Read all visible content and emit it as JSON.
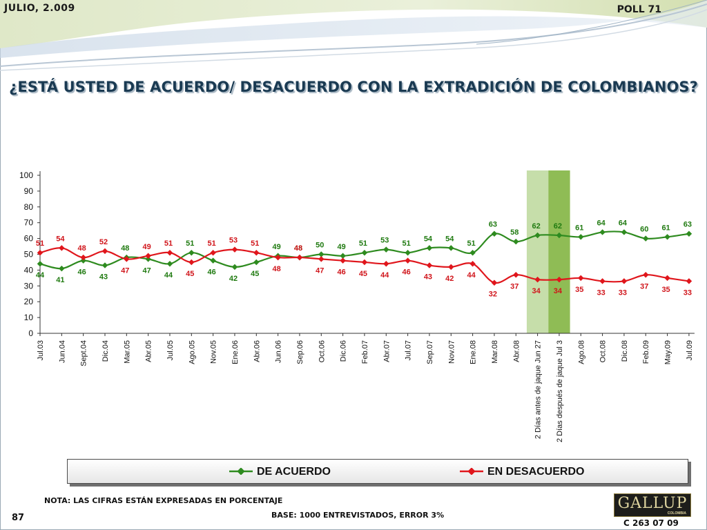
{
  "header": {
    "date": "JULIO, 2.009",
    "poll": "POLL 71"
  },
  "title": "¿ESTÁ USTED DE ACUERDO/ DESACUERDO CON LA EXTRADICIÓN DE COLOMBIANOS?",
  "chart_data": {
    "type": "line",
    "title": "¿ESTÁ USTED DE ACUERDO/ DESACUERDO CON LA EXTRADICIÓN DE COLOMBIANOS?",
    "xlabel": "",
    "ylabel": "",
    "ylim": [
      0,
      100
    ],
    "yticks": [
      0,
      10,
      20,
      30,
      40,
      50,
      60,
      70,
      80,
      90,
      100
    ],
    "grid": false,
    "legend_position": "bottom",
    "categories": [
      "Jul.03",
      "Jun.04",
      "Sept.04",
      "Dic.04",
      "Mar.05",
      "Abr.05",
      "Jul.05",
      "Ago.05",
      "Nov.05",
      "Ene.06",
      "Abr.06",
      "Jun.06",
      "Sep.06",
      "Oct.06",
      "Dic.06",
      "Feb.07",
      "Abr.07",
      "Jul.07",
      "Sep.07",
      "Nov.07",
      "Ene.08",
      "Mar.08",
      "Abr.08",
      "2 Días antes de jaque Jun 27",
      "2 Días después de jaque Jul 3",
      "Ago.08",
      "Oct.08",
      "Dic.08",
      "Feb.09",
      "May.09",
      "Jul.09"
    ],
    "highlighted_categories": [
      {
        "index": 23,
        "color": "#c6deaa"
      },
      {
        "index": 24,
        "color": "#8fbc55"
      }
    ],
    "series": [
      {
        "name": "DE ACUERDO",
        "color": "#2e8b1f",
        "label_color": "#1f7a10",
        "values": [
          44,
          41,
          46,
          43,
          48,
          47,
          44,
          51,
          46,
          42,
          45,
          49,
          48,
          50,
          49,
          51,
          53,
          51,
          54,
          54,
          51,
          63,
          58,
          62,
          62,
          61,
          64,
          64,
          60,
          61,
          63
        ]
      },
      {
        "name": "EN DESACUERDO",
        "color": "#e0161c",
        "label_color": "#d0141a",
        "values": [
          51,
          54,
          48,
          52,
          47,
          49,
          51,
          45,
          51,
          53,
          51,
          48,
          48,
          47,
          46,
          45,
          44,
          46,
          43,
          42,
          44,
          32,
          37,
          34,
          34,
          35,
          33,
          33,
          37,
          35,
          33
        ]
      }
    ]
  },
  "legend": {
    "agree": "DE ACUERDO",
    "disagree": "EN DESACUERDO"
  },
  "footer": {
    "nota": "NOTA: LAS CIFRAS ESTÁN EXPRESADAS EN PORCENTAJE",
    "base": "BASE: 1000 ENTREVISTADOS, ERROR 3%",
    "page_number": "87",
    "code": "C 263 07 09",
    "logo_word": "GALLUP",
    "logo_sub": "COLOMBIA"
  }
}
